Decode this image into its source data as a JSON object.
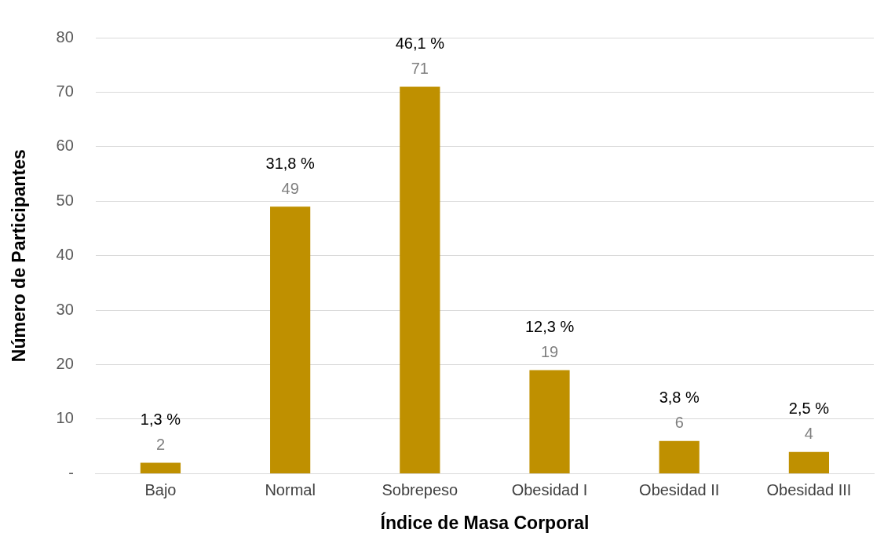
{
  "chart_data": {
    "type": "bar",
    "xlabel": "Índice de Masa Corporal",
    "ylabel": "Número de Participantes",
    "categories": [
      "Bajo",
      "Normal",
      "Sobrepeso",
      "Obesidad I",
      "Obesidad II",
      "Obesidad III"
    ],
    "values": [
      2,
      49,
      71,
      19,
      6,
      4
    ],
    "color": "#bf9000",
    "ylim": [
      0,
      80
    ],
    "yticks": [
      {
        "value": 0,
        "label": "-"
      },
      10,
      20,
      30,
      40,
      50,
      60,
      70,
      80
    ],
    "grid": "y",
    "legend": false,
    "data_labels": true,
    "annotations": [
      {
        "text": "1,3 %",
        "x": "Bajo",
        "y": 2
      },
      {
        "text": "31,8 %",
        "x": "Normal",
        "y": 49
      },
      {
        "text": "46,1 %",
        "x": "Sobrepeso",
        "y": 71
      },
      {
        "text": "12,3 %",
        "x": "Obesidad I",
        "y": 19
      },
      {
        "text": "3,8 %",
        "x": "Obesidad II",
        "y": 6
      },
      {
        "text": "2,5 %",
        "x": "Obesidad III",
        "y": 4
      }
    ]
  }
}
